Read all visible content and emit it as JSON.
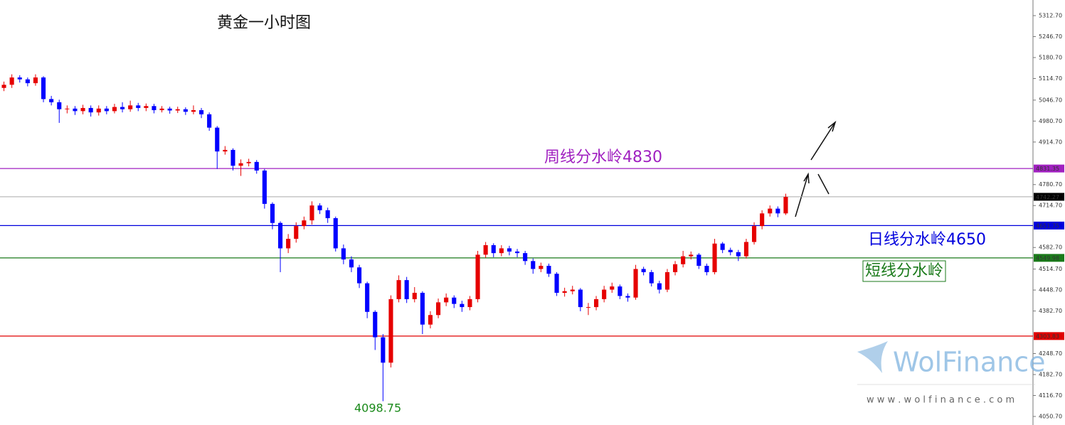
{
  "chart_data": {
    "type": "candlestick",
    "title": "黄金一小时图",
    "up_color": "#e60000",
    "down_color": "#0000ff",
    "open": [
      5085,
      5095,
      5118,
      5112,
      5100,
      5118,
      5050,
      5040,
      5018,
      5020,
      5012,
      5022,
      5008,
      5020,
      5012,
      5025,
      5018,
      5030,
      5022,
      5028,
      5015,
      5020,
      5014,
      5018,
      5010,
      5015,
      5002,
      4960,
      4885,
      4890,
      4840,
      4848,
      4852,
      4825,
      4720,
      4660,
      4580,
      4610,
      4650,
      4668,
      4715,
      4700,
      4675,
      4580,
      4545,
      4520,
      4470,
      4380,
      4300,
      4220,
      4420,
      4480,
      4420,
      4440,
      4340,
      4370,
      4410,
      4425,
      4405,
      4395,
      4420,
      4560,
      4590,
      4565,
      4580,
      4570,
      4565,
      4540,
      4515,
      4525,
      4500,
      4440,
      4445,
      4450,
      4395,
      4395,
      4420,
      4450,
      4460,
      4430,
      4425,
      4515,
      4505,
      4470,
      4450,
      4505,
      4530,
      4555,
      4560,
      4525,
      4505,
      4595,
      4575,
      4568,
      4555,
      4600,
      4650,
      4690,
      4705,
      4690
    ],
    "high": [
      5105,
      5128,
      5125,
      5118,
      5128,
      5122,
      5060,
      5048,
      5030,
      5028,
      5032,
      5030,
      5030,
      5028,
      5035,
      5040,
      5045,
      5038,
      5036,
      5035,
      5028,
      5026,
      5026,
      5024,
      5030,
      5022,
      5008,
      4965,
      4902,
      4895,
      4860,
      4862,
      4858,
      4830,
      4725,
      4665,
      4625,
      4662,
      4680,
      4728,
      4722,
      4708,
      4680,
      4592,
      4555,
      4528,
      4475,
      4385,
      4310,
      4432,
      4495,
      4490,
      4458,
      4445,
      4382,
      4422,
      4438,
      4432,
      4415,
      4430,
      4572,
      4600,
      4596,
      4590,
      4588,
      4578,
      4572,
      4548,
      4535,
      4532,
      4505,
      4456,
      4462,
      4455,
      4408,
      4430,
      4462,
      4472,
      4466,
      4438,
      4528,
      4522,
      4512,
      4478,
      4515,
      4540,
      4572,
      4570,
      4565,
      4532,
      4610,
      4600,
      4582,
      4575,
      4610,
      4662,
      4700,
      4715,
      4712,
      4752
    ],
    "low": [
      5075,
      5085,
      5102,
      5090,
      5092,
      5040,
      5030,
      4975,
      5005,
      5000,
      5002,
      4995,
      4998,
      5002,
      5005,
      5008,
      5010,
      5012,
      5012,
      5005,
      5008,
      5004,
      5006,
      5000,
      5002,
      4990,
      4950,
      4830,
      4875,
      4825,
      4808,
      4838,
      4815,
      4705,
      4640,
      4505,
      4565,
      4598,
      4640,
      4655,
      4688,
      4660,
      4570,
      4530,
      4505,
      4455,
      4360,
      4260,
      4098.75,
      4205,
      4410,
      4408,
      4410,
      4310,
      4328,
      4360,
      4398,
      4392,
      4380,
      4385,
      4410,
      4550,
      4552,
      4555,
      4558,
      4552,
      4528,
      4500,
      4505,
      4490,
      4430,
      4428,
      4435,
      4382,
      4370,
      4385,
      4410,
      4440,
      4420,
      4412,
      4418,
      4495,
      4460,
      4438,
      4442,
      4495,
      4520,
      4545,
      4515,
      4495,
      4498,
      4565,
      4558,
      4540,
      4548,
      4592,
      4640,
      4680,
      4678,
      4685
    ],
    "close": [
      5095,
      5118,
      5112,
      5100,
      5118,
      5050,
      5040,
      5018,
      5020,
      5012,
      5022,
      5008,
      5020,
      5012,
      5025,
      5018,
      5030,
      5022,
      5028,
      5015,
      5020,
      5014,
      5018,
      5010,
      5015,
      5002,
      4960,
      4885,
      4890,
      4840,
      4848,
      4852,
      4825,
      4720,
      4660,
      4580,
      4610,
      4650,
      4668,
      4715,
      4700,
      4675,
      4580,
      4545,
      4520,
      4470,
      4380,
      4300,
      4220,
      4420,
      4480,
      4420,
      4440,
      4340,
      4370,
      4410,
      4425,
      4405,
      4395,
      4420,
      4560,
      4590,
      4565,
      4580,
      4570,
      4565,
      4540,
      4515,
      4525,
      4500,
      4440,
      4445,
      4450,
      4395,
      4395,
      4420,
      4450,
      4460,
      4430,
      4425,
      4515,
      4505,
      4470,
      4450,
      4505,
      4530,
      4555,
      4560,
      4525,
      4505,
      4595,
      4575,
      4568,
      4555,
      4600,
      4650,
      4690,
      4705,
      4690,
      4742
    ],
    "ylim": [
      4023.8,
      5361.9
    ],
    "yticks": [
      {
        "value": 5312.7,
        "label": "5312.70"
      },
      {
        "value": 5246.7,
        "label": "5246.70"
      },
      {
        "value": 5180.7,
        "label": "5180.70"
      },
      {
        "value": 5114.7,
        "label": "5114.70"
      },
      {
        "value": 5046.7,
        "label": "5046.70"
      },
      {
        "value": 4980.7,
        "label": "4980.70"
      },
      {
        "value": 4914.7,
        "label": "4914.70"
      },
      {
        "value": 4780.7,
        "label": "4780.70"
      },
      {
        "value": 4714.7,
        "label": "4714.70"
      },
      {
        "value": 4582.7,
        "label": "4582.70"
      },
      {
        "value": 4514.7,
        "label": "4514.70"
      },
      {
        "value": 4448.7,
        "label": "4448.70"
      },
      {
        "value": 4382.7,
        "label": "4382.70"
      },
      {
        "value": 4248.7,
        "label": "4248.70"
      },
      {
        "value": 4182.7,
        "label": "4182.70"
      },
      {
        "value": 4116.7,
        "label": "4116.70"
      },
      {
        "value": 4050.7,
        "label": "4050.70"
      }
    ],
    "levels": [
      {
        "value": 4831.35,
        "color": "#a020c0"
      },
      {
        "value": 4742.27,
        "color": "#000000"
      },
      {
        "value": 4651.75,
        "color": "#0000dd"
      },
      {
        "value": 4549.98,
        "color": "#1a7a1a"
      },
      {
        "value": 4303.83,
        "color": "#e00000"
      }
    ],
    "annotations": [
      {
        "text": "周线分水岭4830",
        "color": "#a020c0"
      },
      {
        "text": "日线分水岭4650",
        "color": "#0000dd"
      },
      {
        "text": "短线分水岭",
        "color": "#1a7a1a"
      },
      {
        "text": "4098.75",
        "color": "#1a8a1a"
      }
    ],
    "watermark": "WolFinance",
    "website": "w w w . w o l f i n a n c e . c o m"
  }
}
